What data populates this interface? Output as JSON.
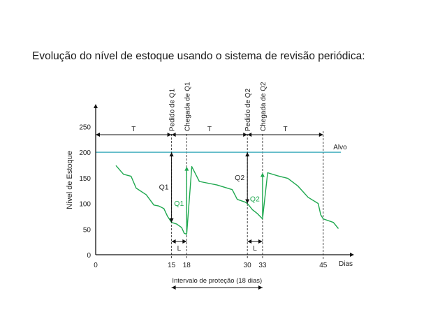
{
  "title": "Evolução do nível de estoque usando o sistema de revisão periódica:",
  "chart_data": {
    "type": "line",
    "ylabel": "Nível de Estoque",
    "xlabel": "Dias",
    "xlim": [
      0,
      48
    ],
    "ylim": [
      0,
      250
    ],
    "x_ticks": [
      0,
      15,
      18,
      30,
      33,
      45
    ],
    "y_ticks": [
      0,
      50,
      100,
      150,
      200,
      250
    ],
    "target": {
      "label": "Alvo",
      "value": 200
    },
    "series": [
      {
        "points": [
          [
            4,
            174
          ],
          [
            5.5,
            157
          ],
          [
            7,
            153
          ],
          [
            8,
            130
          ],
          [
            10,
            117
          ],
          [
            11.5,
            97
          ],
          [
            12.5,
            95
          ],
          [
            13.5,
            90
          ],
          [
            14.2,
            75
          ],
          [
            15,
            63
          ],
          [
            16,
            60
          ],
          [
            17,
            53
          ],
          [
            17.5,
            42
          ],
          [
            18,
            40
          ],
          [
            19,
            172
          ],
          [
            20.5,
            143
          ],
          [
            24,
            136
          ],
          [
            27,
            127
          ],
          [
            28,
            108
          ],
          [
            29.5,
            103
          ],
          [
            30,
            100
          ],
          [
            31,
            88
          ],
          [
            32,
            80
          ],
          [
            33,
            70
          ],
          [
            34,
            160
          ],
          [
            36,
            154
          ],
          [
            38,
            149
          ],
          [
            40,
            134
          ],
          [
            42,
            112
          ],
          [
            44,
            100
          ],
          [
            44.5,
            78
          ],
          [
            45,
            70
          ],
          [
            47,
            63
          ],
          [
            48,
            51
          ]
        ]
      }
    ],
    "event_labels": [
      {
        "day": 15,
        "text": "Pedido de Q1"
      },
      {
        "day": 18,
        "text": "Chegada de Q1"
      },
      {
        "day": 30,
        "text": "Pedido de Q2"
      },
      {
        "day": 33,
        "text": "Chegada de Q2"
      }
    ],
    "review_period": {
      "label": "T",
      "intervals": [
        [
          0,
          15
        ],
        [
          15,
          30
        ],
        [
          30,
          45
        ]
      ]
    },
    "order_quantities": [
      {
        "label": "Q1",
        "day": 15,
        "from": 63,
        "to": 200
      },
      {
        "label": "Q2",
        "day": 30,
        "from": 100,
        "to": 200
      }
    ],
    "delivery_quantities": [
      {
        "label": "Q1",
        "day": 18,
        "from": 40,
        "to": 172
      },
      {
        "label": "Q2",
        "day": 33,
        "from": 70,
        "to": 160
      }
    ],
    "lead_time": {
      "label": "L",
      "intervals": [
        [
          15,
          18
        ],
        [
          30,
          33
        ]
      ]
    },
    "protection_interval": {
      "label": "Intervalo de proteção (18 dias)",
      "range": [
        15,
        33
      ]
    },
    "colors": {
      "line": "#1fa84f",
      "target": "#2aa4b5",
      "axis": "#111111"
    }
  }
}
